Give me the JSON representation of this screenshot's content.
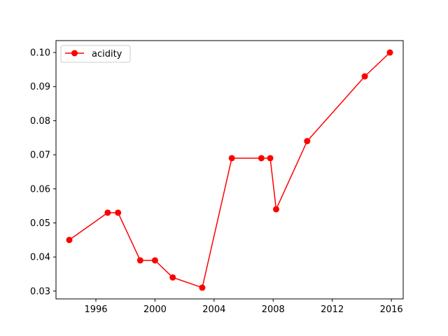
{
  "chart_data": {
    "type": "line",
    "title": "",
    "xlabel": "",
    "ylabel": "",
    "x_ticks": [
      "1996",
      "2000",
      "2004",
      "2008",
      "2012",
      "2016"
    ],
    "y_ticks": [
      "0.03",
      "0.04",
      "0.05",
      "0.06",
      "0.07",
      "0.08",
      "0.09",
      "0.10"
    ],
    "xlim": [
      1993.3,
      2016.8
    ],
    "ylim": [
      0.0277,
      0.1035
    ],
    "grid": false,
    "legend_position": "upper-left",
    "series": [
      {
        "name": "acidity",
        "color": "#ff0000",
        "marker": "circle",
        "x": [
          1994.2,
          1996.8,
          1997.5,
          1999.0,
          2000.0,
          2001.2,
          2003.2,
          2005.2,
          2007.2,
          2007.8,
          2008.2,
          2010.3,
          2014.2,
          2015.9
        ],
        "y": [
          0.045,
          0.053,
          0.053,
          0.039,
          0.039,
          0.034,
          0.031,
          0.069,
          0.069,
          0.069,
          0.054,
          0.074,
          0.093,
          0.1
        ]
      }
    ]
  }
}
